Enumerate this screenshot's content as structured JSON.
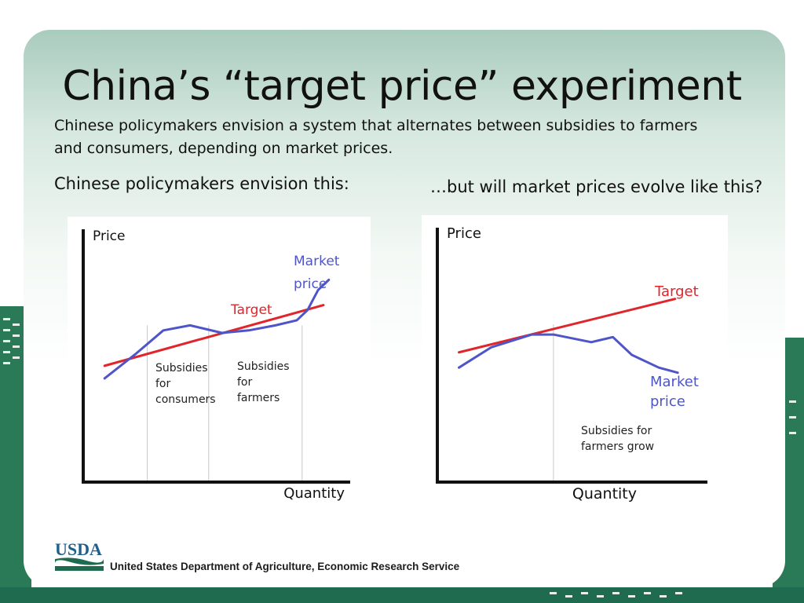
{
  "slide": {
    "title": "China’s “target price” experiment",
    "intro": "Chinese policymakers envision a system that alternates between subsidies to farmers and consumers, depending on market prices.",
    "left_caption": "Chinese policymakers envision this:",
    "right_caption": "…but will market prices evolve like this?"
  },
  "footer": {
    "logo_text": "USDA",
    "agency": "United States Department of Agriculture, Economic Research Service"
  },
  "colors": {
    "target_line": "#e0252b",
    "market_line": "#4e55c9",
    "axis": "#111111",
    "brand_green": "#1f6b4f"
  },
  "chart_data": [
    {
      "type": "line",
      "ylabel": "Price",
      "xlabel": "Quantity",
      "xlim": [
        0,
        100
      ],
      "ylim": [
        0,
        100
      ],
      "series": [
        {
          "name": "Target",
          "x": [
            8,
            90
          ],
          "y": [
            46,
            70
          ]
        },
        {
          "name": "Market price",
          "x": [
            8,
            20,
            30,
            40,
            52,
            62,
            72,
            80,
            84,
            88,
            92
          ],
          "y": [
            41,
            51,
            60,
            62,
            59,
            60,
            62,
            64,
            68,
            76,
            80
          ]
        }
      ],
      "annotations": [
        {
          "lines": [
            "Subsidies",
            "for",
            "consumers"
          ]
        },
        {
          "lines": [
            "Subsidies",
            "for",
            "farmers"
          ]
        }
      ],
      "series_labels": {
        "target": [
          "Target"
        ],
        "market": [
          "Market",
          "price"
        ]
      },
      "dividers_x": [
        24,
        47,
        82
      ],
      "grid": false
    },
    {
      "type": "line",
      "ylabel": "Price",
      "xlabel": "Quantity",
      "xlim": [
        0,
        100
      ],
      "ylim": [
        0,
        100
      ],
      "series": [
        {
          "name": "Target",
          "x": [
            8,
            88
          ],
          "y": [
            51,
            72
          ]
        },
        {
          "name": "Market price",
          "x": [
            8,
            20,
            35,
            43,
            57,
            65,
            72,
            82,
            89
          ],
          "y": [
            45,
            53,
            58,
            58,
            55,
            57,
            50,
            45,
            43
          ]
        }
      ],
      "annotations": [
        {
          "lines": [
            "Subsidies for",
            "farmers grow"
          ]
        }
      ],
      "series_labels": {
        "target": [
          "Target"
        ],
        "market": [
          "Market",
          "price"
        ]
      },
      "dividers_x": [
        43
      ],
      "grid": false
    }
  ]
}
